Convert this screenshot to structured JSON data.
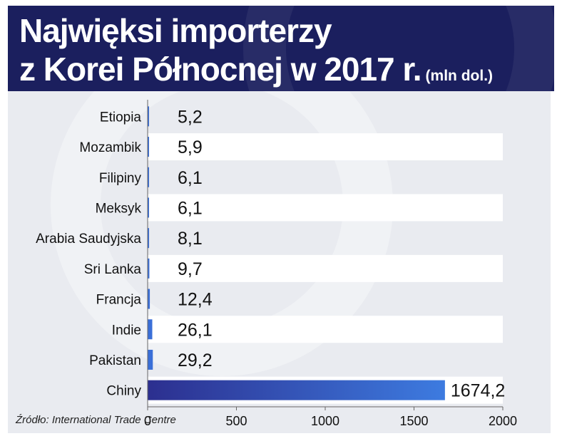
{
  "header": {
    "title_line1": "Najwięksi importerzy",
    "title_line2": "z Korei Północnej w 2017 r.",
    "unit": "(mln dol.)"
  },
  "source": "Źródło: International Trade Centre",
  "colors": {
    "header_bg": "#1b1f5e",
    "bar_small": "#3a6fd8",
    "bar_gradient_start": "#2c2f8f",
    "bar_gradient_end": "#3d7be0",
    "row_band": "#ffffff"
  },
  "chart_data": {
    "type": "bar",
    "orientation": "horizontal",
    "categories": [
      "Etiopia",
      "Mozambik",
      "Filipiny",
      "Meksyk",
      "Arabia Saudyjska",
      "Sri Lanka",
      "Francja",
      "Indie",
      "Pakistan",
      "Chiny"
    ],
    "values": [
      5.2,
      5.9,
      6.1,
      6.1,
      8.1,
      9.7,
      12.4,
      26.1,
      29.2,
      1674.2
    ],
    "value_labels": [
      "5,2",
      "5,9",
      "6,1",
      "6,1",
      "8,1",
      "9,7",
      "12,4",
      "26,1",
      "29,2",
      "1674,2"
    ],
    "xlim": [
      0,
      2000
    ],
    "xticks": [
      "0",
      "500",
      "1000",
      "1500",
      "2000"
    ],
    "grid": false,
    "title": "Najwięksi importerzy z Korei Północnej w 2017 r.",
    "unit": "(mln dol.)"
  }
}
